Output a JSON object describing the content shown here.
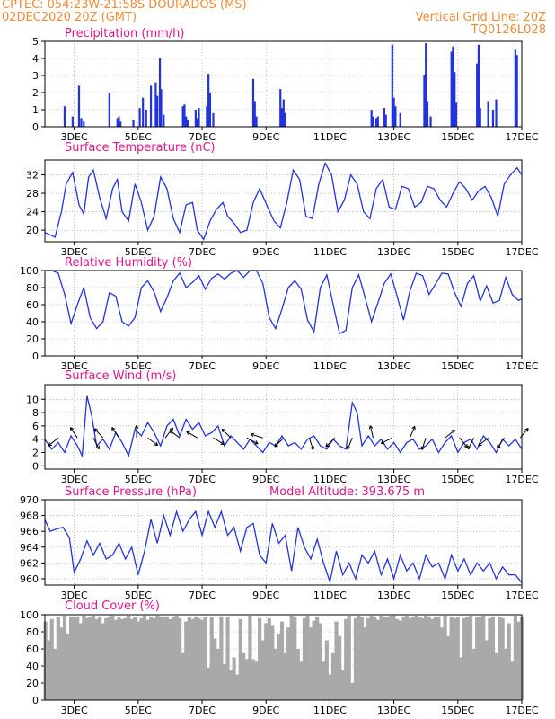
{
  "header": {
    "left_line1": "CPTEC:  054:23W-21:58S  DOURADOS (MS)",
    "left_line2": "02DEC2020 20Z (GMT)",
    "right_line1": "Vertical Grid Line: 20Z",
    "right_line2": "TQ0126L028"
  },
  "colors": {
    "header": "#f08a33",
    "panel_title": "#e0138c",
    "series": "#2233dd",
    "cloud": "#a9a9a9",
    "wind_arrow": "#000000"
  },
  "x_axis": {
    "tick_labels": [
      "3DEC",
      "5DEC",
      "7DEC",
      "9DEC",
      "11DEC",
      "13DEC",
      "15DEC",
      "17DEC"
    ],
    "tick_days": [
      3,
      5,
      7,
      9,
      11,
      13,
      15,
      17
    ],
    "range_days": [
      2.083,
      17
    ]
  },
  "chart_data": [
    {
      "type": "bar",
      "title": "Precipitation (mm/h)",
      "ylim": [
        0,
        5
      ],
      "yticks": [
        "0",
        "1",
        "2",
        "3",
        "4",
        "5"
      ],
      "x": [
        2.7,
        2.95,
        3.15,
        3.22,
        3.3,
        4.1,
        4.35,
        4.4,
        4.45,
        4.85,
        5.05,
        5.15,
        5.25,
        5.4,
        5.55,
        5.6,
        5.68,
        5.72,
        5.8,
        6.4,
        6.45,
        6.5,
        6.55,
        6.8,
        6.85,
        6.9,
        7.15,
        7.2,
        7.25,
        7.35,
        8.6,
        8.65,
        8.7,
        9.45,
        9.5,
        9.55,
        9.6,
        12.3,
        12.35,
        12.45,
        12.5,
        12.7,
        12.75,
        12.95,
        13.0,
        13.05,
        13.2,
        13.95,
        14.0,
        14.05,
        14.15,
        14.8,
        14.85,
        14.9,
        14.95,
        15.6,
        15.65,
        15.7,
        15.95,
        16.1,
        16.2,
        16.8,
        16.85
      ],
      "values": [
        1.2,
        0.6,
        2.4,
        0.5,
        0.3,
        2.0,
        0.5,
        0.6,
        0.3,
        0.4,
        1.1,
        1.7,
        1.0,
        2.4,
        2.6,
        1.8,
        4.0,
        2.2,
        0.7,
        1.2,
        1.3,
        0.6,
        0.4,
        1.0,
        0.5,
        1.1,
        1.2,
        3.1,
        2.0,
        0.8,
        2.8,
        1.5,
        0.6,
        2.2,
        1.1,
        1.6,
        0.8,
        1.0,
        0.6,
        0.5,
        0.6,
        1.1,
        0.7,
        4.8,
        1.7,
        1.2,
        0.8,
        3.0,
        4.9,
        1.5,
        0.6,
        4.4,
        4.7,
        3.2,
        1.4,
        3.7,
        4.8,
        1.1,
        1.5,
        1.0,
        1.6,
        4.5,
        4.2
      ]
    },
    {
      "type": "line",
      "title": "Surface Temperature (nC)",
      "ylim": [
        17.5,
        35.2
      ],
      "yticks": [
        "20",
        "24",
        "28",
        "32"
      ],
      "x": [
        2.08,
        2.25,
        2.4,
        2.6,
        2.75,
        2.95,
        3.15,
        3.3,
        3.45,
        3.6,
        3.8,
        4.0,
        4.2,
        4.35,
        4.5,
        4.7,
        4.9,
        5.1,
        5.3,
        5.5,
        5.7,
        5.9,
        6.1,
        6.3,
        6.5,
        6.7,
        6.85,
        7.05,
        7.25,
        7.45,
        7.65,
        7.8,
        8.0,
        8.2,
        8.4,
        8.6,
        8.8,
        9.05,
        9.25,
        9.45,
        9.65,
        9.85,
        10.05,
        10.25,
        10.45,
        10.65,
        10.85,
        11.05,
        11.25,
        11.45,
        11.65,
        11.85,
        12.05,
        12.25,
        12.45,
        12.65,
        12.85,
        13.05,
        13.25,
        13.45,
        13.65,
        13.85,
        14.05,
        14.25,
        14.45,
        14.65,
        14.85,
        15.05,
        15.25,
        15.45,
        15.65,
        15.85,
        16.05,
        16.25,
        16.45,
        16.65,
        16.85,
        17.0
      ],
      "values": [
        19.5,
        19.0,
        18.5,
        24.0,
        30.0,
        32.5,
        25.5,
        23.5,
        31.5,
        33.0,
        27.0,
        22.5,
        29.0,
        31.0,
        24.0,
        22.0,
        30.0,
        26.0,
        20.0,
        23.0,
        31.5,
        29.0,
        22.5,
        19.5,
        25.5,
        26.0,
        20.0,
        18.0,
        22.0,
        24.5,
        26.0,
        23.0,
        21.5,
        19.5,
        20.0,
        26.0,
        29.0,
        25.0,
        22.0,
        20.5,
        26.0,
        33.0,
        31.0,
        23.0,
        22.5,
        30.0,
        34.5,
        32.0,
        24.0,
        26.5,
        32.0,
        30.0,
        24.0,
        22.5,
        29.0,
        31.0,
        25.0,
        24.5,
        29.5,
        29.0,
        25.0,
        26.0,
        29.5,
        29.0,
        26.5,
        25.0,
        28.0,
        30.5,
        29.0,
        26.5,
        28.5,
        29.5,
        27.0,
        23.0,
        30.0,
        32.0,
        33.5,
        32.0
      ]
    },
    {
      "type": "line",
      "title": "Relative Humidity (%)",
      "ylim": [
        0,
        100
      ],
      "yticks": [
        "0",
        "20",
        "40",
        "60",
        "80",
        "100"
      ],
      "x": [
        2.08,
        2.3,
        2.5,
        2.7,
        2.9,
        3.1,
        3.3,
        3.5,
        3.7,
        3.9,
        4.1,
        4.3,
        4.5,
        4.7,
        4.9,
        5.1,
        5.3,
        5.5,
        5.7,
        5.9,
        6.1,
        6.3,
        6.5,
        6.7,
        6.9,
        7.1,
        7.3,
        7.5,
        7.7,
        7.9,
        8.1,
        8.3,
        8.5,
        8.7,
        8.9,
        9.1,
        9.3,
        9.5,
        9.7,
        9.9,
        10.1,
        10.3,
        10.5,
        10.7,
        10.9,
        11.1,
        11.3,
        11.5,
        11.7,
        11.9,
        12.1,
        12.3,
        12.5,
        12.7,
        12.9,
        13.1,
        13.3,
        13.5,
        13.7,
        13.9,
        14.1,
        14.3,
        14.5,
        14.7,
        14.9,
        15.1,
        15.3,
        15.5,
        15.7,
        15.9,
        16.1,
        16.3,
        16.5,
        16.7,
        16.9,
        17.0
      ],
      "values": [
        100,
        100,
        97,
        72,
        38,
        60,
        80,
        45,
        32,
        40,
        74,
        70,
        40,
        35,
        45,
        80,
        88,
        75,
        52,
        68,
        88,
        97,
        80,
        86,
        94,
        78,
        91,
        96,
        90,
        97,
        100,
        92,
        100,
        100,
        85,
        45,
        32,
        55,
        80,
        88,
        78,
        42,
        28,
        80,
        95,
        60,
        26,
        30,
        80,
        95,
        68,
        40,
        62,
        85,
        96,
        70,
        42,
        76,
        97,
        94,
        72,
        84,
        97,
        96,
        74,
        58,
        85,
        94,
        64,
        82,
        62,
        65,
        92,
        72,
        65,
        67
      ]
    },
    {
      "type": "line",
      "title": "Surface Wind (m/s)",
      "ylim": [
        -0.5,
        12.2
      ],
      "yticks": [
        "0",
        "2",
        "4",
        "6",
        "8",
        "10"
      ],
      "x": [
        2.08,
        2.3,
        2.5,
        2.7,
        2.9,
        3.1,
        3.25,
        3.4,
        3.55,
        3.7,
        3.9,
        4.1,
        4.3,
        4.5,
        4.7,
        4.9,
        5.1,
        5.3,
        5.5,
        5.7,
        5.9,
        6.1,
        6.3,
        6.5,
        6.7,
        6.9,
        7.1,
        7.3,
        7.5,
        7.7,
        7.9,
        8.1,
        8.3,
        8.5,
        8.7,
        8.9,
        9.1,
        9.3,
        9.5,
        9.7,
        9.9,
        10.1,
        10.3,
        10.5,
        10.7,
        10.9,
        11.1,
        11.3,
        11.5,
        11.7,
        11.85,
        12.0,
        12.2,
        12.4,
        12.6,
        12.8,
        13.0,
        13.2,
        13.4,
        13.6,
        13.8,
        14.0,
        14.2,
        14.4,
        14.6,
        14.8,
        15.0,
        15.2,
        15.4,
        15.6,
        15.8,
        16.0,
        16.2,
        16.4,
        16.6,
        16.8,
        17.0
      ],
      "values": [
        4.0,
        2.5,
        3.5,
        2.0,
        4.5,
        3.0,
        1.5,
        10.5,
        7.5,
        3.0,
        4.0,
        2.5,
        5.0,
        3.5,
        1.5,
        5.5,
        4.5,
        6.5,
        5.0,
        3.0,
        6.0,
        7.0,
        4.5,
        7.0,
        5.5,
        6.5,
        4.5,
        5.0,
        6.0,
        3.0,
        4.5,
        3.5,
        2.5,
        4.0,
        3.0,
        2.0,
        3.5,
        3.0,
        4.5,
        3.0,
        3.5,
        2.5,
        4.0,
        4.5,
        3.0,
        2.5,
        4.0,
        3.0,
        2.5,
        9.5,
        8.0,
        3.0,
        4.5,
        3.0,
        4.0,
        2.5,
        3.5,
        2.0,
        3.5,
        4.0,
        2.5,
        3.0,
        4.0,
        2.0,
        3.5,
        4.5,
        2.0,
        3.5,
        4.0,
        2.5,
        4.5,
        3.5,
        2.0,
        4.0,
        3.0,
        4.0,
        2.5
      ],
      "arrows_x": [
        2.5,
        3.1,
        3.6,
        3.9,
        4.4,
        4.95,
        5.3,
        5.85,
        6.3,
        6.85,
        7.35,
        7.9,
        8.4,
        8.9,
        9.55,
        10.35,
        11.15,
        11.7,
        12.35,
        12.95,
        13.5,
        14.0,
        14.6,
        15.05,
        15.5,
        15.95,
        16.45,
        16.95
      ],
      "arrows_u": [
        -1.5,
        -1.0,
        1.0,
        -2.0,
        -1.0,
        0.0,
        2.0,
        1.5,
        -2.0,
        -2.0,
        2.0,
        -1.5,
        1.5,
        -2.5,
        -1.0,
        0.5,
        -1.0,
        -0.5,
        -0.5,
        -2.0,
        0.5,
        -0.5,
        1.5,
        1.0,
        -0.5,
        -1.5,
        -1.0,
        1.0
      ],
      "arrows_v": [
        -1.2,
        1.5,
        -2.0,
        2.2,
        1.5,
        2.5,
        -1.5,
        2.0,
        1.5,
        1.2,
        -1.2,
        1.5,
        -0.8,
        0.8,
        -1.0,
        -1.5,
        -1.0,
        -1.2,
        2.2,
        -1.0,
        1.2,
        -1.5,
        1.2,
        -1.2,
        -1.0,
        -1.2,
        -1.5,
        1.2
      ]
    },
    {
      "type": "line",
      "title": "Surface Pressure (hPa)",
      "annotation": "Model Altitude: 393.675 m",
      "ylim": [
        959.2,
        970
      ],
      "yticks": [
        "960",
        "962",
        "964",
        "966",
        "968",
        "970"
      ],
      "x": [
        2.08,
        2.25,
        2.45,
        2.65,
        2.85,
        3.0,
        3.2,
        3.4,
        3.6,
        3.8,
        4.0,
        4.2,
        4.4,
        4.6,
        4.8,
        5.0,
        5.2,
        5.4,
        5.6,
        5.8,
        6.0,
        6.2,
        6.4,
        6.6,
        6.8,
        7.0,
        7.2,
        7.4,
        7.6,
        7.8,
        8.0,
        8.2,
        8.4,
        8.6,
        8.8,
        9.0,
        9.2,
        9.4,
        9.6,
        9.8,
        10.0,
        10.2,
        10.4,
        10.6,
        10.8,
        11.0,
        11.2,
        11.4,
        11.6,
        11.8,
        12.0,
        12.2,
        12.4,
        12.6,
        12.8,
        13.0,
        13.2,
        13.4,
        13.6,
        13.8,
        14.0,
        14.2,
        14.4,
        14.6,
        14.8,
        15.0,
        15.2,
        15.4,
        15.6,
        15.8,
        16.0,
        16.2,
        16.4,
        16.6,
        16.8,
        17.0
      ],
      "values": [
        967.5,
        966.0,
        966.3,
        966.5,
        965.2,
        960.8,
        962.5,
        964.8,
        963.0,
        964.5,
        962.5,
        963.0,
        964.5,
        962.5,
        964.0,
        960.5,
        963.5,
        967.5,
        964.5,
        968.0,
        965.5,
        968.5,
        966.0,
        967.5,
        968.5,
        965.5,
        968.5,
        966.5,
        968.5,
        965.5,
        966.5,
        963.5,
        966.5,
        967.0,
        963.0,
        962.0,
        967.0,
        964.5,
        965.5,
        961.0,
        966.5,
        964.0,
        962.5,
        965.0,
        962.0,
        959.6,
        963.5,
        960.5,
        962.0,
        960.0,
        963.0,
        962.0,
        963.5,
        960.5,
        962.5,
        960.0,
        963.0,
        961.0,
        962.0,
        960.0,
        963.0,
        961.5,
        962.0,
        960.0,
        963.0,
        961.0,
        962.5,
        960.5,
        962.0,
        961.0,
        962.0,
        960.0,
        961.5,
        960.5,
        960.5,
        959.5
      ]
    },
    {
      "type": "bar",
      "title": "Cloud Cover (%)",
      "ylim": [
        0,
        100
      ],
      "yticks": [
        "0",
        "20",
        "40",
        "60",
        "80",
        "100"
      ],
      "x": [
        2.1,
        2.2,
        2.3,
        2.4,
        2.5,
        2.6,
        2.7,
        2.8,
        2.9,
        3.0,
        3.1,
        3.2,
        3.3,
        3.4,
        3.5,
        3.6,
        3.7,
        3.8,
        3.9,
        4.0,
        4.1,
        4.2,
        4.3,
        4.4,
        4.5,
        4.6,
        4.7,
        4.8,
        4.9,
        5.0,
        5.1,
        5.2,
        5.3,
        5.4,
        5.5,
        5.6,
        5.7,
        5.8,
        5.9,
        6.0,
        6.1,
        6.2,
        6.3,
        6.4,
        6.5,
        6.6,
        6.7,
        6.8,
        6.9,
        7.0,
        7.1,
        7.2,
        7.3,
        7.4,
        7.5,
        7.6,
        7.7,
        7.8,
        7.9,
        8.0,
        8.1,
        8.2,
        8.3,
        8.4,
        8.5,
        8.6,
        8.7,
        8.8,
        8.9,
        9.0,
        9.1,
        9.2,
        9.3,
        9.4,
        9.5,
        9.6,
        9.7,
        9.8,
        9.9,
        10.0,
        10.1,
        10.2,
        10.3,
        10.4,
        10.5,
        10.6,
        10.7,
        10.8,
        10.9,
        11.0,
        11.1,
        11.2,
        11.3,
        11.4,
        11.5,
        11.6,
        11.7,
        11.8,
        11.9,
        12.0,
        12.1,
        12.2,
        12.3,
        12.4,
        12.5,
        12.6,
        12.7,
        12.8,
        12.9,
        13.0,
        13.1,
        13.2,
        13.3,
        13.4,
        13.5,
        13.6,
        13.7,
        13.8,
        13.9,
        14.0,
        14.1,
        14.2,
        14.3,
        14.4,
        14.5,
        14.6,
        14.7,
        14.8,
        14.9,
        15.0,
        15.1,
        15.2,
        15.3,
        15.4,
        15.5,
        15.6,
        15.7,
        15.8,
        15.9,
        16.0,
        16.1,
        16.2,
        16.3,
        16.4,
        16.5,
        16.6,
        16.7,
        16.8,
        16.9,
        17.0
      ],
      "values": [
        92,
        70,
        95,
        60,
        97,
        85,
        99,
        78,
        98,
        97,
        98,
        90,
        99,
        96,
        98,
        99,
        95,
        97,
        90,
        96,
        98,
        99,
        94,
        97,
        95,
        96,
        99,
        95,
        97,
        92,
        96,
        99,
        94,
        98,
        96,
        99,
        98,
        97,
        98,
        95,
        97,
        99,
        96,
        55,
        92,
        97,
        95,
        98,
        96,
        94,
        97,
        38,
        97,
        72,
        60,
        98,
        42,
        97,
        35,
        50,
        30,
        95,
        55,
        48,
        99,
        48,
        45,
        96,
        70,
        90,
        96,
        88,
        60,
        78,
        92,
        55,
        85,
        99,
        98,
        60,
        45,
        96,
        99,
        85,
        93,
        98,
        90,
        45,
        70,
        30,
        55,
        92,
        75,
        35,
        95,
        99,
        20,
        96,
        99,
        97,
        85,
        96,
        99,
        98,
        94,
        99,
        98,
        97,
        99,
        99,
        95,
        93,
        97,
        99,
        96,
        98,
        99,
        97,
        96,
        99,
        98,
        95,
        97,
        98,
        85,
        99,
        75,
        98,
        96,
        97,
        50,
        96,
        98,
        99,
        60,
        97,
        98,
        99,
        70,
        96,
        98,
        55,
        97,
        96,
        60,
        90,
        45,
        99,
        92,
        97
      ]
    }
  ]
}
